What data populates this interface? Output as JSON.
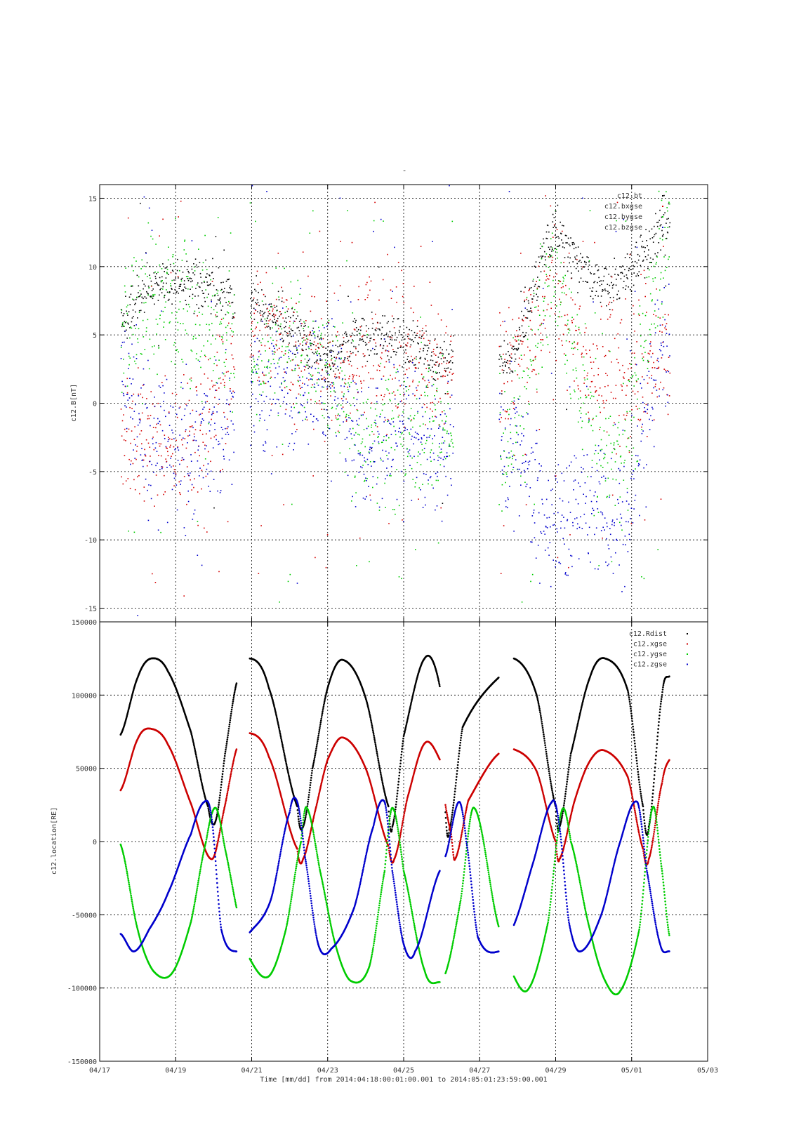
{
  "figure": {
    "top_title": "-",
    "time_label": "Time [mm/dd]  from 2014:04:18:00:01:00.001  to  2014:05:01:23:59:00.001"
  },
  "chart_data": [
    {
      "type": "scatter",
      "ylabel": "c12.B[nT]",
      "xlabel": "",
      "ylim": [
        -16,
        16
      ],
      "xlim_days": [
        0,
        16
      ],
      "x_tick_labels": [
        "04/17",
        "04/19",
        "04/21",
        "04/23",
        "04/25",
        "04/27",
        "04/29",
        "05/01",
        "05/03"
      ],
      "x_tick_days": [
        0,
        2,
        4,
        6,
        8,
        10,
        12,
        14,
        16
      ],
      "y_ticks": [
        -15,
        -10,
        -5,
        0,
        5,
        10,
        15
      ],
      "y_tick_labels": [
        "-15",
        "-10",
        "-5",
        "0",
        "5",
        "10",
        "15"
      ],
      "grid": true,
      "legend_position": "top-right",
      "series": [
        {
          "name": "c12.bt",
          "color": "#000000"
        },
        {
          "name": "c12.bxgse",
          "color": "#d40000"
        },
        {
          "name": "c12.bygse",
          "color": "#00cc00"
        },
        {
          "name": "c12.bzgse",
          "color": "#0000cc"
        }
      ],
      "data_segments_days": [
        [
          0.55,
          3.55
        ],
        [
          3.95,
          9.3
        ],
        [
          10.5,
          15.0
        ]
      ],
      "segment_levels": [
        {
          "x": 0.6,
          "bt": 6.0,
          "bx": -3.0,
          "by": 5.0,
          "bz": 2.0
        },
        {
          "x": 1.2,
          "bt": 8.5,
          "bx": -2.5,
          "by": 8.0,
          "bz": -3.0
        },
        {
          "x": 2.1,
          "bt": 9.0,
          "bx": -3.5,
          "by": 7.0,
          "bz": -4.0
        },
        {
          "x": 4.1,
          "bt": 7.5,
          "bx": 6.0,
          "by": 4.0,
          "bz": 1.0
        },
        {
          "x": 6.1,
          "bt": 3.0,
          "bx": 2.5,
          "by": 2.5,
          "bz": 2.0
        },
        {
          "x": 6.8,
          "bt": 5.0,
          "bx": 3.0,
          "by": -2.0,
          "bz": -3.0
        },
        {
          "x": 8.2,
          "bt": 4.5,
          "bx": 4.0,
          "by": -2.0,
          "bz": -2.0
        },
        {
          "x": 8.9,
          "bt": 3.0,
          "bx": 2.5,
          "by": -1.0,
          "bz": -3.0
        },
        {
          "x": 10.9,
          "bt": 3.5,
          "bx": 3.0,
          "by": -3.0,
          "bz": -3.0
        },
        {
          "x": 11.9,
          "bt": 13.0,
          "bx": 9.0,
          "by": 10.0,
          "bz": -9.0
        },
        {
          "x": 13.1,
          "bt": 8.5,
          "bx": 1.5,
          "by": -3.0,
          "bz": -7.0
        },
        {
          "x": 13.8,
          "bt": 9.0,
          "bx": 2.0,
          "by": -3.5,
          "bz": -9.0
        },
        {
          "x": 14.8,
          "bt": 13.0,
          "bx": 4.0,
          "by": 12.0,
          "bz": 5.0
        }
      ]
    },
    {
      "type": "line",
      "ylabel": "c12.location[RE]",
      "xlabel": "",
      "ylim": [
        -150000,
        150000
      ],
      "xlim_days": [
        0,
        16
      ],
      "x_tick_labels": [
        "04/17",
        "04/19",
        "04/21",
        "04/23",
        "04/25",
        "04/27",
        "04/29",
        "05/01",
        "05/03"
      ],
      "x_tick_days": [
        0,
        2,
        4,
        6,
        8,
        10,
        12,
        14,
        16
      ],
      "y_ticks": [
        -150000,
        -100000,
        -50000,
        0,
        50000,
        100000,
        150000
      ],
      "y_tick_labels": [
        "-150000",
        "-100000",
        "-50000",
        "0",
        "50000",
        "100000",
        "150000"
      ],
      "grid": true,
      "legend_position": "top-right",
      "orbit_period_days": 2.25,
      "data_segments_days": [
        [
          0.55,
          3.6
        ],
        [
          3.95,
          8.95
        ],
        [
          9.1,
          10.5
        ],
        [
          10.9,
          15.0
        ]
      ],
      "series": [
        {
          "name": "c12.Rdist",
          "color": "#000000",
          "points": [
            [
              0.55,
              73000
            ],
            [
              1.0,
              112000
            ],
            [
              1.35,
              125000
            ],
            [
              1.8,
              116000
            ],
            [
              2.4,
              75000
            ],
            [
              2.85,
              24000
            ],
            [
              3.05,
              14000
            ],
            [
              3.3,
              60000
            ],
            [
              3.6,
              108000
            ],
            [
              3.95,
              125000
            ],
            [
              4.45,
              105000
            ],
            [
              5.2,
              24000
            ],
            [
              5.35,
              10000
            ],
            [
              5.6,
              50000
            ],
            [
              6.0,
              105000
            ],
            [
              6.4,
              124000
            ],
            [
              7.0,
              98000
            ],
            [
              7.6,
              24000
            ],
            [
              7.7,
              10000
            ],
            [
              8.0,
              72000
            ],
            [
              8.55,
              125000
            ],
            [
              8.95,
              106000
            ],
            [
              9.1,
              20000
            ],
            [
              9.2,
              8000
            ],
            [
              9.55,
              78000
            ],
            [
              10.5,
              112000
            ],
            [
              10.9,
              125000
            ],
            [
              11.5,
              100000
            ],
            [
              12.0,
              24000
            ],
            [
              12.1,
              10000
            ],
            [
              12.4,
              60000
            ],
            [
              12.9,
              112000
            ],
            [
              13.3,
              125000
            ],
            [
              13.9,
              103000
            ],
            [
              14.3,
              24000
            ],
            [
              14.45,
              10000
            ],
            [
              14.8,
              100000
            ],
            [
              15.0,
              113000
            ]
          ]
        },
        {
          "name": "c12.xgse",
          "color": "#cc0000",
          "points": [
            [
              0.55,
              35000
            ],
            [
              1.0,
              70000
            ],
            [
              1.35,
              77000
            ],
            [
              1.8,
              66000
            ],
            [
              2.4,
              26000
            ],
            [
              2.95,
              -12000
            ],
            [
              3.3,
              25000
            ],
            [
              3.6,
              63000
            ],
            [
              3.95,
              74000
            ],
            [
              4.45,
              58000
            ],
            [
              5.2,
              -5000
            ],
            [
              5.35,
              -12000
            ],
            [
              5.7,
              24000
            ],
            [
              6.0,
              56000
            ],
            [
              6.4,
              71000
            ],
            [
              7.0,
              50000
            ],
            [
              7.6,
              -3000
            ],
            [
              7.75,
              -12000
            ],
            [
              8.1,
              30000
            ],
            [
              8.55,
              67000
            ],
            [
              8.95,
              56000
            ],
            [
              9.1,
              25000
            ],
            [
              9.25,
              5000
            ],
            [
              9.35,
              -12000
            ],
            [
              9.7,
              28000
            ],
            [
              10.5,
              60000
            ],
            [
              10.9,
              63000
            ],
            [
              11.5,
              48000
            ],
            [
              12.0,
              0
            ],
            [
              12.1,
              -12000
            ],
            [
              12.5,
              28000
            ],
            [
              12.9,
              55000
            ],
            [
              13.3,
              62000
            ],
            [
              13.9,
              44000
            ],
            [
              14.3,
              -5000
            ],
            [
              14.45,
              -12000
            ],
            [
              14.8,
              40000
            ],
            [
              15.0,
              56000
            ]
          ]
        },
        {
          "name": "c12.ygse",
          "color": "#00cc00",
          "points": [
            [
              0.55,
              -2000
            ],
            [
              1.0,
              -60000
            ],
            [
              1.4,
              -88000
            ],
            [
              1.9,
              -90000
            ],
            [
              2.4,
              -55000
            ],
            [
              2.8,
              0
            ],
            [
              3.05,
              23000
            ],
            [
              3.3,
              -5000
            ],
            [
              3.6,
              -45000
            ],
            [
              3.95,
              -80000
            ],
            [
              4.45,
              -92000
            ],
            [
              4.9,
              -60000
            ],
            [
              5.3,
              0
            ],
            [
              5.45,
              23000
            ],
            [
              5.8,
              -20000
            ],
            [
              6.2,
              -70000
            ],
            [
              6.6,
              -95000
            ],
            [
              7.1,
              -85000
            ],
            [
              7.5,
              -20000
            ],
            [
              7.7,
              23000
            ],
            [
              8.0,
              -20000
            ],
            [
              8.55,
              -88000
            ],
            [
              8.95,
              -96000
            ],
            [
              9.1,
              -90000
            ],
            [
              9.5,
              -40000
            ],
            [
              9.85,
              23000
            ],
            [
              10.5,
              -58000
            ],
            [
              10.9,
              -92000
            ],
            [
              11.3,
              -100000
            ],
            [
              11.8,
              -55000
            ],
            [
              12.15,
              20000
            ],
            [
              12.4,
              0
            ],
            [
              12.9,
              -60000
            ],
            [
              13.3,
              -95000
            ],
            [
              13.7,
              -102000
            ],
            [
              14.2,
              -60000
            ],
            [
              14.55,
              23000
            ],
            [
              14.8,
              -20000
            ],
            [
              15.0,
              -65000
            ]
          ]
        },
        {
          "name": "c12.zgse",
          "color": "#0000cc",
          "points": [
            [
              0.55,
              -63000
            ],
            [
              0.9,
              -75000
            ],
            [
              1.3,
              -60000
            ],
            [
              1.8,
              -35000
            ],
            [
              2.4,
              5000
            ],
            [
              2.75,
              27000
            ],
            [
              2.95,
              15000
            ],
            [
              3.2,
              -60000
            ],
            [
              3.6,
              -75000
            ],
            [
              3.95,
              -62000
            ],
            [
              4.5,
              -40000
            ],
            [
              5.0,
              20000
            ],
            [
              5.2,
              27000
            ],
            [
              5.4,
              -10000
            ],
            [
              5.75,
              -70000
            ],
            [
              6.1,
              -73000
            ],
            [
              6.7,
              -45000
            ],
            [
              7.2,
              10000
            ],
            [
              7.5,
              27000
            ],
            [
              7.7,
              -20000
            ],
            [
              8.0,
              -70000
            ],
            [
              8.3,
              -75000
            ],
            [
              8.95,
              -20000
            ],
            [
              9.1,
              -10000
            ],
            [
              9.45,
              27000
            ],
            [
              9.65,
              0
            ],
            [
              9.95,
              -65000
            ],
            [
              10.5,
              -75000
            ],
            [
              10.9,
              -57000
            ],
            [
              11.4,
              -15000
            ],
            [
              11.9,
              27000
            ],
            [
              12.1,
              10000
            ],
            [
              12.35,
              -55000
            ],
            [
              12.65,
              -75000
            ],
            [
              13.2,
              -50000
            ],
            [
              13.7,
              0
            ],
            [
              14.15,
              27000
            ],
            [
              14.4,
              -20000
            ],
            [
              14.75,
              -70000
            ],
            [
              15.0,
              -75000
            ]
          ]
        }
      ]
    }
  ]
}
